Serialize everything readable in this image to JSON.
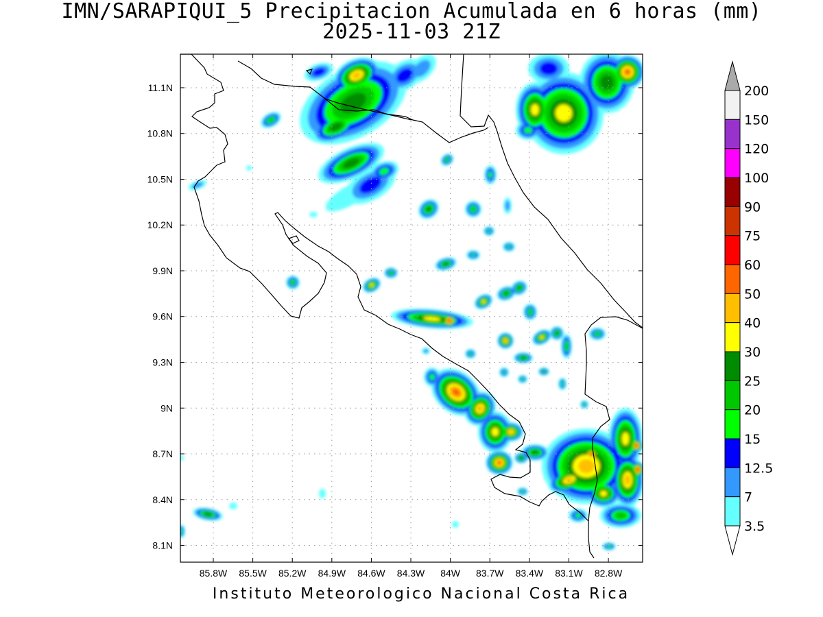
{
  "title": {
    "line1": "IMN/SARAPIQUI_5 Precipitacion Acumulada en 6 horas (mm)",
    "line2": "2025-11-03 21Z"
  },
  "footer": "Instituto Meteorologico Nacional Costa Rica",
  "map": {
    "lon_range": [
      -86.05,
      -82.54
    ],
    "lat_range": [
      7.99,
      11.32
    ],
    "lat_ticks": [
      "11.1N",
      "10.8N",
      "10.5N",
      "10.2N",
      "9.9N",
      "9.6N",
      "9.3N",
      "9N",
      "8.7N",
      "8.4N",
      "8.1N"
    ],
    "lon_ticks": [
      "85.8W",
      "85.5W",
      "85.2W",
      "84.9W",
      "84.6W",
      "84.3W",
      "84W",
      "83.7W",
      "83.4W",
      "83.1W",
      "82.8W"
    ],
    "grid": true
  },
  "legend": {
    "labels": [
      "200",
      "150",
      "120",
      "100",
      "90",
      "75",
      "60",
      "50",
      "40",
      "30",
      "25",
      "20",
      "15",
      "12.5",
      "7",
      "3.5"
    ],
    "colors": [
      "#f2f2f2",
      "#9932cc",
      "#ff00ff",
      "#990000",
      "#cc3300",
      "#ff0000",
      "#ff6600",
      "#ffbf00",
      "#ffff00",
      "#008c00",
      "#00c800",
      "#00ff00",
      "#0000ff",
      "#3399ff",
      "#66ffff"
    ],
    "top_arrow_color": "#aaaaaa",
    "bottom_arrow_color": "#ffffff"
  },
  "precip_colors": {
    "cyan": "#66ffff",
    "lightblue": "#3399ff",
    "blue": "#0000ff",
    "green": "#00ff00",
    "midgreen": "#00c800",
    "darkgreen": "#008c00",
    "yellow": "#ffff00",
    "amber": "#ffbf00",
    "orange": "#ff6600",
    "red": "#ff0000"
  }
}
